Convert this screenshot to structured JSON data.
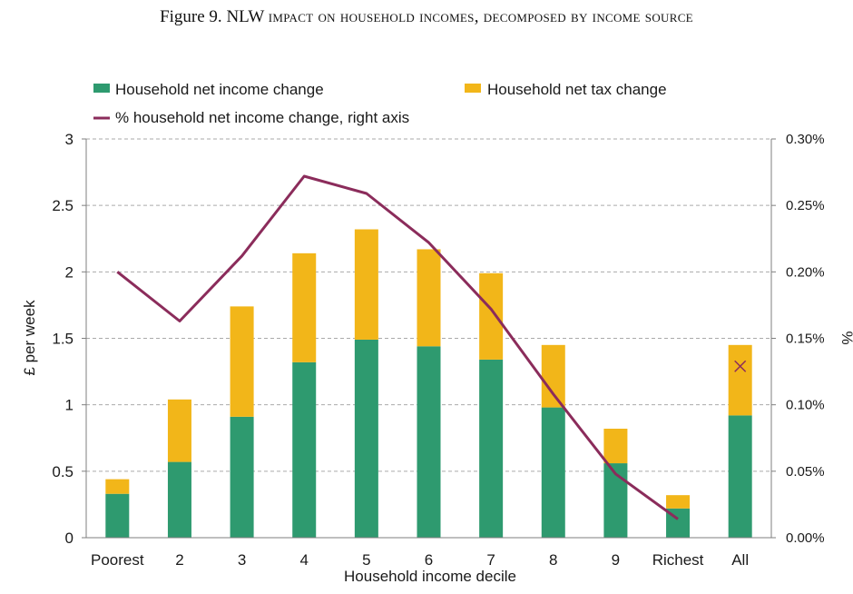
{
  "figure": {
    "label": "Figure 9.",
    "title_lead": "NLW",
    "title_rest": "impact on household incomes, decomposed by income source"
  },
  "chart_data": {
    "type": "bar",
    "stacked": true,
    "categories": [
      "Poorest",
      "2",
      "3",
      "4",
      "5",
      "6",
      "7",
      "8",
      "9",
      "Richest",
      "All"
    ],
    "series": [
      {
        "name": "Household net income change",
        "axis": "left",
        "color": "#2e9a6f",
        "values": [
          0.33,
          0.57,
          0.91,
          1.32,
          1.49,
          1.44,
          1.34,
          0.98,
          0.56,
          0.22,
          0.92
        ]
      },
      {
        "name": "Household net tax change",
        "axis": "left",
        "color": "#f2b619",
        "values": [
          0.11,
          0.47,
          0.83,
          0.82,
          0.83,
          0.73,
          0.65,
          0.47,
          0.26,
          0.1,
          0.53
        ]
      }
    ],
    "line": {
      "name": "% household net income change, right axis",
      "color": "#8b2c5b",
      "categories": [
        "Poorest",
        "2",
        "3",
        "4",
        "5",
        "6",
        "7",
        "8",
        "9",
        "Richest"
      ],
      "values": [
        0.2,
        0.163,
        0.212,
        0.272,
        0.259,
        0.222,
        0.172,
        0.108,
        0.048,
        0.014
      ],
      "all_marker": 0.129,
      "all_marker_category": "All",
      "marker_symbol": "×"
    },
    "xlabel": "Household income decile",
    "ylabel": "£ per week",
    "y2label": "%",
    "ylim": [
      0,
      3
    ],
    "yticks": [
      "0",
      "0.5",
      "1",
      "1.5",
      "2",
      "2.5",
      "3"
    ],
    "y2lim": [
      0,
      0.3
    ],
    "y2ticks": [
      "0.00%",
      "0.05%",
      "0.10%",
      "0.15%",
      "0.20%",
      "0.25%",
      "0.30%"
    ],
    "grid": true,
    "legend_position": "top"
  }
}
